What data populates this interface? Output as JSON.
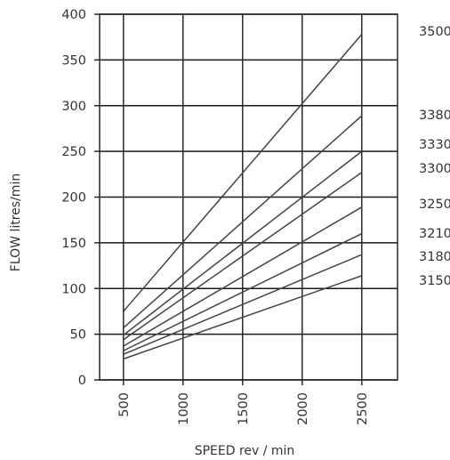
{
  "chart_data": {
    "type": "line",
    "xlabel": "SPEED rev / min",
    "ylabel": "FLOW litres/min",
    "xlim": [
      300,
      2800
    ],
    "ylim": [
      0,
      400
    ],
    "x_ticks": [
      "500",
      "1000",
      "1500",
      "2000",
      "2500"
    ],
    "y_ticks": [
      "0",
      "50",
      "100",
      "150",
      "200",
      "250",
      "300",
      "350",
      "400"
    ],
    "grid": true,
    "legend": "series labels on right side",
    "series": [
      {
        "name": "3500",
        "x": [
          500,
          2500
        ],
        "y": [
          75,
          378
        ]
      },
      {
        "name": "3380",
        "x": [
          500,
          2500
        ],
        "y": [
          57,
          289
        ]
      },
      {
        "name": "3330",
        "x": [
          500,
          2500
        ],
        "y": [
          49,
          250
        ]
      },
      {
        "name": "3300",
        "x": [
          500,
          2500
        ],
        "y": [
          44,
          227
        ]
      },
      {
        "name": "3250",
        "x": [
          500,
          2500
        ],
        "y": [
          37,
          189
        ]
      },
      {
        "name": "3210",
        "x": [
          500,
          2500
        ],
        "y": [
          32,
          160
        ]
      },
      {
        "name": "3180",
        "x": [
          500,
          2500
        ],
        "y": [
          28,
          137
        ]
      },
      {
        "name": "3150",
        "x": [
          500,
          2500
        ],
        "y": [
          23,
          114
        ]
      }
    ]
  }
}
